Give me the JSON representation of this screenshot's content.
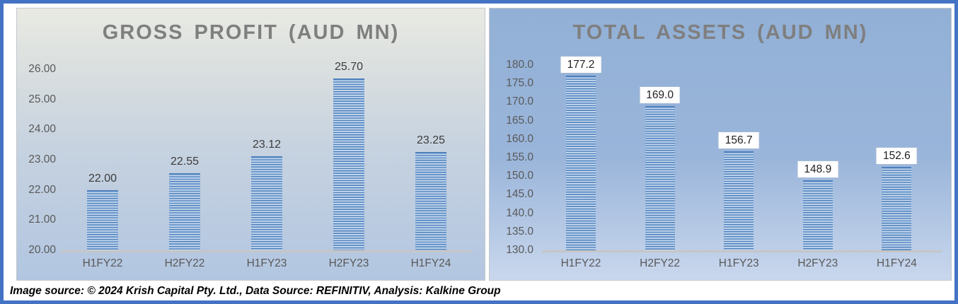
{
  "footer": {
    "text": "Image source: © 2024 Krish Capital Pty. Ltd., Data Source: REFINITIV, Analysis: Kalkine Group"
  },
  "colors": {
    "frame_border_blue": "#4472c4",
    "bar_stripe_dark": "#4d80bd",
    "bar_stripe_light": "#dbe7f5",
    "title_gray": "#7f7f7f",
    "axis_text_gray": "#595959",
    "axis_line_gray": "#c6c6c6"
  },
  "chart_data": [
    {
      "type": "bar",
      "title": "GROSS PROFIT (AUD MN)",
      "categories": [
        "H1FY22",
        "H2FY22",
        "H1FY23",
        "H2FY23",
        "H1FY24"
      ],
      "values": [
        22.0,
        22.55,
        23.12,
        25.7,
        23.25
      ],
      "bar_labels": [
        "22.00",
        "22.55",
        "23.12",
        "25.70",
        "23.25"
      ],
      "xlabel": "",
      "ylabel": "",
      "ylim": [
        20,
        26
      ],
      "ytick_step": 1,
      "yticks": [
        "26.00",
        "25.00",
        "24.00",
        "23.00",
        "22.00",
        "21.00",
        "20.00"
      ],
      "grid": false,
      "legend": false,
      "data_label_boxed": false
    },
    {
      "type": "bar",
      "title": "TOTAL ASSETS (AUD MN)",
      "categories": [
        "H1FY22",
        "H2FY22",
        "H1FY23",
        "H2FY23",
        "H1FY24"
      ],
      "values": [
        177.2,
        169.0,
        156.7,
        148.9,
        152.6
      ],
      "bar_labels": [
        "177.2",
        "169.0",
        "156.7",
        "148.9",
        "152.6"
      ],
      "xlabel": "",
      "ylabel": "",
      "ylim": [
        130,
        180
      ],
      "ytick_step": 5,
      "yticks": [
        "180.0",
        "175.0",
        "170.0",
        "165.0",
        "160.0",
        "155.0",
        "150.0",
        "145.0",
        "140.0",
        "135.0",
        "130.0"
      ],
      "grid": false,
      "legend": false,
      "data_label_boxed": true
    }
  ]
}
